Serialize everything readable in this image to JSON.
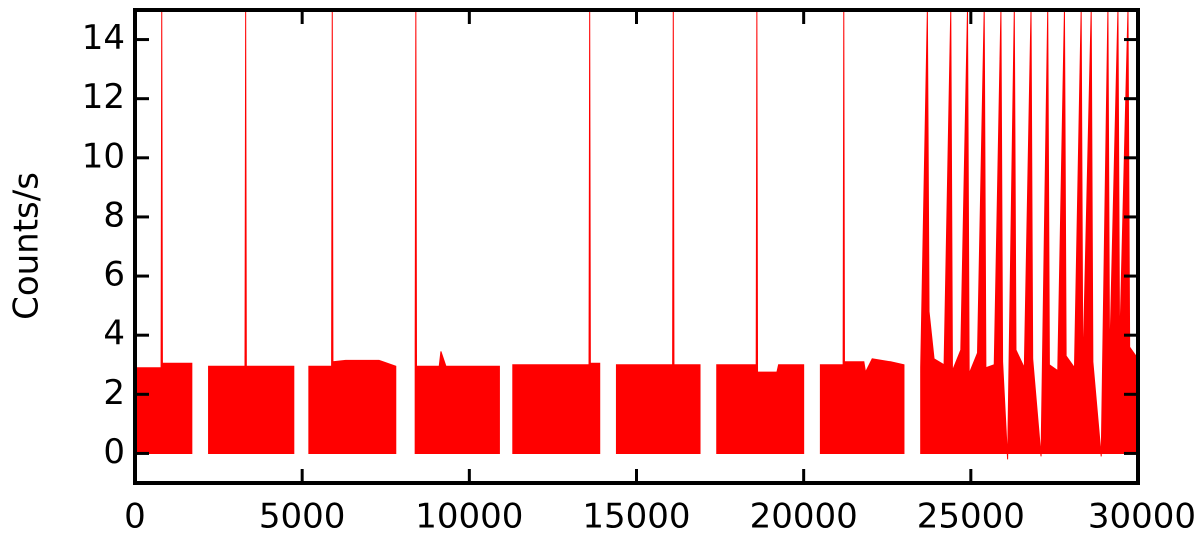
{
  "chart_data": {
    "type": "area",
    "ylabel": "Counts/s",
    "color": "#ff0000",
    "x": [
      0,
      780,
      800,
      820,
      1700,
      1850,
      2200,
      3290,
      3310,
      3330,
      4750,
      4900,
      5200,
      5880,
      5900,
      5920,
      6300,
      7300,
      7800,
      8000,
      8380,
      8400,
      8420,
      9100,
      9150,
      9300,
      10900,
      11100,
      11300,
      13580,
      13600,
      13620,
      13900,
      14100,
      14400,
      16080,
      16100,
      16120,
      16900,
      17100,
      17400,
      18580,
      18600,
      18620,
      19200,
      19250,
      20000,
      20200,
      20500,
      21180,
      21200,
      21220,
      21800,
      21850,
      22050,
      22600,
      23000,
      23300,
      23500,
      23700,
      23750,
      23900,
      24200,
      24400,
      24450,
      24700,
      24900,
      24950,
      25200,
      25400,
      25450,
      25700,
      25900,
      25950,
      26100,
      26300,
      26350,
      26600,
      26800,
      26850,
      27100,
      27300,
      27350,
      27600,
      27800,
      27850,
      28100,
      28300,
      28350,
      28600,
      28650,
      28900,
      29100,
      29150,
      29400,
      29450,
      29700,
      29750,
      30000
    ],
    "values": [
      2.9,
      2.9,
      15,
      3.05,
      3.05,
      null,
      2.95,
      2.95,
      15,
      2.95,
      2.95,
      null,
      2.95,
      2.95,
      15,
      3.1,
      3.15,
      3.15,
      2.95,
      null,
      3.7,
      15,
      2.95,
      2.95,
      3.45,
      2.95,
      2.95,
      null,
      3.0,
      3.0,
      15,
      3.05,
      3.05,
      null,
      3.0,
      3.0,
      15,
      3.0,
      3.0,
      null,
      3.0,
      3.0,
      15,
      2.75,
      2.75,
      3.0,
      3.0,
      null,
      3.0,
      3.0,
      15,
      3.1,
      3.1,
      2.75,
      3.2,
      3.1,
      3.0,
      null,
      2.9,
      15,
      4.8,
      3.2,
      3.0,
      15,
      2.8,
      3.5,
      15,
      2.7,
      3.4,
      15,
      2.9,
      3.0,
      15,
      3.1,
      -0.2,
      15,
      3.5,
      2.9,
      15,
      3.2,
      -0.1,
      15,
      3.0,
      2.8,
      15,
      3.3,
      2.9,
      15,
      2.7,
      15,
      3.1,
      -0.1,
      15,
      3.0,
      15,
      3.5,
      15,
      3.6,
      3.2
    ],
    "xlim": [
      0,
      30000
    ],
    "ylim": [
      -1,
      15
    ],
    "xticks": [
      0,
      5000,
      10000,
      15000,
      20000,
      25000,
      30000
    ],
    "yticks": [
      0,
      2,
      4,
      6,
      8,
      10,
      12,
      14
    ]
  }
}
